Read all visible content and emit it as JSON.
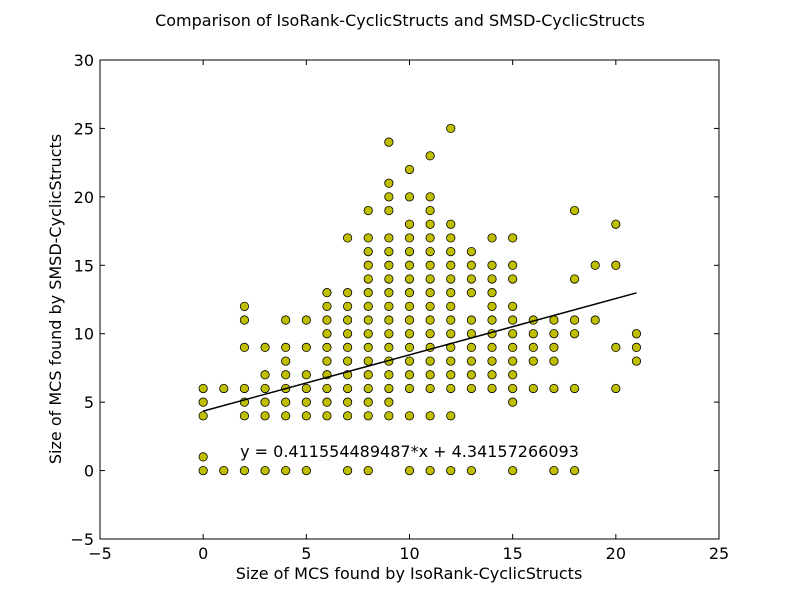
{
  "chart_data": {
    "type": "scatter",
    "title": "Comparison of IsoRank-CyclicStructs and SMSD-CyclicStructs",
    "xlabel": "Size of MCS found by IsoRank-CyclicStructs",
    "ylabel": "Size of MCS found by SMSD-CyclicStructs",
    "xlim": [
      -5,
      25
    ],
    "ylim": [
      -5,
      30
    ],
    "xticks": [
      -5,
      0,
      5,
      10,
      15,
      20,
      25
    ],
    "yticks": [
      -5,
      0,
      5,
      10,
      15,
      20,
      25,
      30
    ],
    "xtick_labels": [
      "−5",
      "0",
      "5",
      "10",
      "15",
      "20",
      "25"
    ],
    "ytick_labels": [
      "−5",
      "0",
      "5",
      "10",
      "15",
      "20",
      "25",
      "30"
    ],
    "grid": false,
    "marker_color": "#bfbf00",
    "marker_edge": "#000000",
    "line_color": "#000000",
    "fit": {
      "slope": 0.411554489487,
      "intercept": 4.34157266093,
      "x_start": 0,
      "x_end": 21,
      "label": "y = 0.411554489487*x + 4.34157266093"
    },
    "points_by_x": [
      {
        "x": 0,
        "ys": [
          0,
          1,
          4,
          5,
          6
        ]
      },
      {
        "x": 1,
        "ys": [
          0,
          6
        ]
      },
      {
        "x": 2,
        "ys": [
          0,
          4,
          5,
          6,
          9,
          11,
          12
        ]
      },
      {
        "x": 3,
        "ys": [
          0,
          4,
          5,
          6,
          7,
          9
        ]
      },
      {
        "x": 4,
        "ys": [
          0,
          4,
          5,
          6,
          7,
          8,
          9,
          11
        ]
      },
      {
        "x": 5,
        "ys": [
          0,
          4,
          5,
          6,
          7,
          9,
          11
        ]
      },
      {
        "x": 6,
        "ys": [
          4,
          5,
          6,
          7,
          8,
          9,
          10,
          11,
          12,
          13
        ]
      },
      {
        "x": 7,
        "ys": [
          0,
          4,
          5,
          6,
          7,
          8,
          9,
          10,
          11,
          12,
          13,
          17
        ]
      },
      {
        "x": 8,
        "ys": [
          0,
          4,
          5,
          6,
          7,
          8,
          9,
          10,
          11,
          12,
          13,
          14,
          15,
          16,
          17,
          19
        ]
      },
      {
        "x": 9,
        "ys": [
          4,
          5,
          6,
          7,
          8,
          9,
          10,
          11,
          12,
          13,
          14,
          15,
          16,
          17,
          19,
          20,
          21,
          24
        ]
      },
      {
        "x": 10,
        "ys": [
          0,
          4,
          6,
          7,
          8,
          9,
          10,
          11,
          12,
          13,
          14,
          15,
          16,
          17,
          18,
          20,
          22
        ]
      },
      {
        "x": 11,
        "ys": [
          0,
          4,
          6,
          7,
          8,
          9,
          10,
          11,
          12,
          13,
          14,
          15,
          16,
          17,
          18,
          19,
          20,
          23
        ]
      },
      {
        "x": 12,
        "ys": [
          0,
          4,
          6,
          7,
          8,
          9,
          10,
          11,
          12,
          13,
          14,
          15,
          16,
          17,
          18,
          25
        ]
      },
      {
        "x": 13,
        "ys": [
          0,
          6,
          7,
          8,
          9,
          10,
          11,
          13,
          14,
          15,
          16
        ]
      },
      {
        "x": 14,
        "ys": [
          6,
          7,
          8,
          9,
          10,
          11,
          12,
          13,
          14,
          15,
          17
        ]
      },
      {
        "x": 15,
        "ys": [
          0,
          5,
          6,
          7,
          8,
          9,
          10,
          11,
          12,
          14,
          15,
          17
        ]
      },
      {
        "x": 16,
        "ys": [
          6,
          8,
          9,
          10,
          11
        ]
      },
      {
        "x": 17,
        "ys": [
          0,
          6,
          8,
          9,
          10,
          11
        ]
      },
      {
        "x": 18,
        "ys": [
          0,
          6,
          10,
          11,
          14,
          19
        ]
      },
      {
        "x": 19,
        "ys": [
          11,
          15
        ]
      },
      {
        "x": 20,
        "ys": [
          6,
          9,
          15,
          18
        ]
      },
      {
        "x": 21,
        "ys": [
          8,
          9,
          10
        ]
      }
    ]
  }
}
